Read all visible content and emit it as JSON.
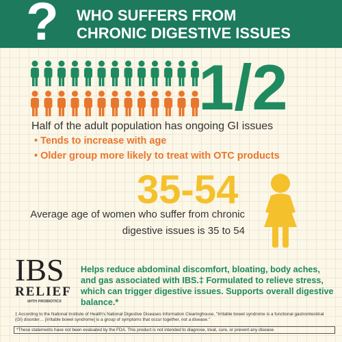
{
  "header": {
    "title": "WHO SUFFERS FROM CHRONIC DIGESTIVE ISSUES"
  },
  "stat1": {
    "value": "1/2",
    "text": "Half of the adult population has ongoing GI issues"
  },
  "bullets": [
    "Tends to increase with age",
    "Older group more likely to treat with OTC products"
  ],
  "stat2": {
    "value": "35-54",
    "text": "Average age of women who suffer from chronic digestive issues is 35 to 54"
  },
  "logo": {
    "brand": "IBS",
    "sub": "RELIEF",
    "tag": "WITH PROBIOTICS"
  },
  "description": "Helps reduce abdominal discomfort, bloating, body aches, and gas associated with IBS.‡ Formulated to relieve stress, which can trigger digestive issues. Supports overall digestive balance.*",
  "footnotes": [
    "‡ According to the National Institute of Health's National Digestive Diseases Information Clearinghouse, \"Irritable bowel syndrome is a functional gastrointestinal (GI) disorder… [irritable bowel syndrome] is a group of symptoms that occur together, not a disease.\"",
    "*These statements have not been evaluated by the FDA. This product is not intended to diagnose, treat, cure, or prevent any disease."
  ]
}
